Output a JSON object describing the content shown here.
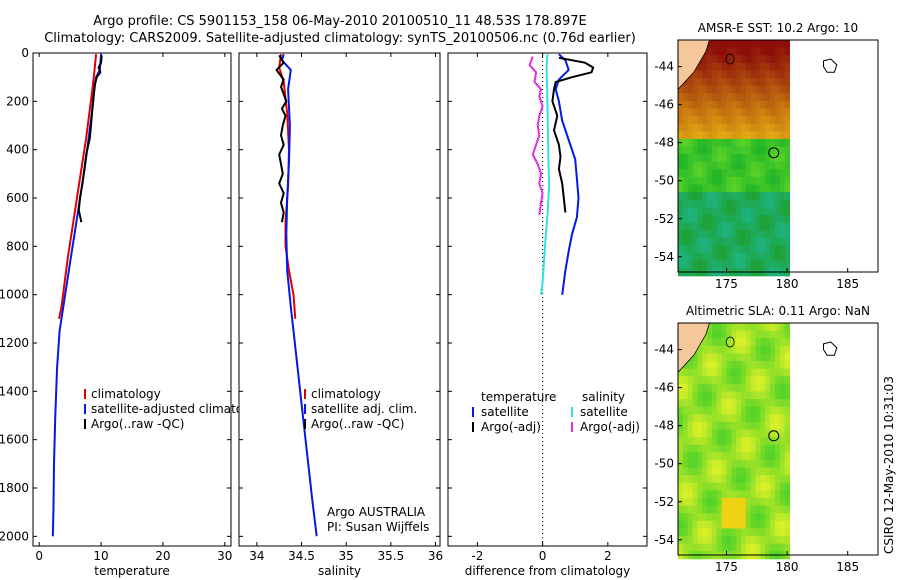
{
  "title_line1": "Argo profile: CS 5901153_158 06-May-2010 20100510_11 48.53S 178.897E",
  "title_line2": "Climatology: CARS2009. Satellite-adjusted climatology: synTS_20100506.nc (0.76d earlier)",
  "footer_text": "CSIRO 12-May-2010 10:31:03",
  "colors": {
    "red": "#e00000",
    "blue": "#0018e8",
    "black": "#000000",
    "cyan": "#30e0e0",
    "magenta": "#e030e0"
  },
  "chart_data": [
    {
      "type": "line",
      "xlabel": "temperature",
      "xlim": [
        -1,
        31
      ],
      "xticks": [
        0,
        10,
        20,
        30
      ],
      "ylim": [
        2040,
        0
      ],
      "yticks": [
        0,
        200,
        400,
        600,
        800,
        1000,
        1200,
        1400,
        1600,
        1800,
        2000
      ],
      "legend": [
        "climatology",
        "satellite-adjusted climatology",
        "Argo(..raw -QC)"
      ],
      "series": [
        {
          "color": "red",
          "points": [
            [
              9.2,
              5
            ],
            [
              8.9,
              80
            ],
            [
              8.6,
              150
            ],
            [
              8.1,
              250
            ],
            [
              7.6,
              350
            ],
            [
              7.0,
              450
            ],
            [
              6.4,
              550
            ],
            [
              5.8,
              650
            ],
            [
              5.2,
              750
            ],
            [
              4.6,
              850
            ],
            [
              4.1,
              950
            ],
            [
              3.6,
              1050
            ],
            [
              3.2,
              1100
            ]
          ]
        },
        {
          "color": "blue",
          "points": [
            [
              10.0,
              5
            ],
            [
              9.9,
              40
            ],
            [
              9.8,
              70
            ],
            [
              9.2,
              100
            ],
            [
              8.9,
              150
            ],
            [
              8.5,
              250
            ],
            [
              8.0,
              350
            ],
            [
              7.5,
              450
            ],
            [
              6.9,
              550
            ],
            [
              6.3,
              650
            ],
            [
              5.7,
              750
            ],
            [
              5.1,
              850
            ],
            [
              4.5,
              950
            ],
            [
              3.9,
              1050
            ],
            [
              3.3,
              1150
            ],
            [
              2.9,
              1300
            ],
            [
              2.6,
              1500
            ],
            [
              2.4,
              1700
            ],
            [
              2.3,
              1900
            ],
            [
              2.2,
              2000
            ]
          ]
        },
        {
          "color": "black",
          "points": [
            [
              10.1,
              10
            ],
            [
              10.0,
              40
            ],
            [
              9.6,
              60
            ],
            [
              9.9,
              80
            ],
            [
              9.3,
              100
            ],
            [
              9.0,
              130
            ],
            [
              8.8,
              180
            ],
            [
              8.5,
              260
            ],
            [
              8.2,
              350
            ],
            [
              7.6,
              420
            ],
            [
              7.3,
              480
            ],
            [
              7.0,
              540
            ],
            [
              6.6,
              600
            ],
            [
              6.4,
              650
            ],
            [
              6.8,
              700
            ]
          ]
        }
      ]
    },
    {
      "type": "line",
      "xlabel": "salinity",
      "xlim": [
        33.8,
        36.05
      ],
      "xticks": [
        34,
        34.5,
        35,
        35.5,
        36
      ],
      "xtick_labels": [
        "34",
        "34.5",
        "35",
        "35.5",
        "36"
      ],
      "ylim": [
        2040,
        0
      ],
      "legend": [
        "climatology",
        "satellite adj. clim.",
        "Argo(..raw -QC)"
      ],
      "annotation": [
        "Argo AUSTRALIA",
        "PI: Susan Wijffels"
      ],
      "series": [
        {
          "color": "red",
          "points": [
            [
              34.27,
              5
            ],
            [
              34.25,
              60
            ],
            [
              34.3,
              120
            ],
            [
              34.34,
              250
            ],
            [
              34.36,
              400
            ],
            [
              34.35,
              550
            ],
            [
              34.32,
              700
            ],
            [
              34.32,
              800
            ],
            [
              34.36,
              900
            ],
            [
              34.41,
              1000
            ],
            [
              34.43,
              1100
            ]
          ]
        },
        {
          "color": "blue",
          "points": [
            [
              34.3,
              5
            ],
            [
              34.28,
              30
            ],
            [
              34.38,
              70
            ],
            [
              34.35,
              150
            ],
            [
              34.37,
              300
            ],
            [
              34.36,
              450
            ],
            [
              34.34,
              600
            ],
            [
              34.33,
              750
            ],
            [
              34.34,
              900
            ],
            [
              34.38,
              1050
            ],
            [
              34.44,
              1250
            ],
            [
              34.5,
              1450
            ],
            [
              34.56,
              1650
            ],
            [
              34.62,
              1850
            ],
            [
              34.67,
              2000
            ]
          ]
        },
        {
          "color": "black",
          "points": [
            [
              34.25,
              10
            ],
            [
              34.3,
              40
            ],
            [
              34.22,
              70
            ],
            [
              34.26,
              90
            ],
            [
              34.3,
              110
            ],
            [
              34.27,
              140
            ],
            [
              34.3,
              170
            ],
            [
              34.33,
              200
            ],
            [
              34.28,
              230
            ],
            [
              34.32,
              260
            ],
            [
              34.29,
              300
            ],
            [
              34.27,
              340
            ],
            [
              34.3,
              380
            ],
            [
              34.25,
              420
            ],
            [
              34.27,
              460
            ],
            [
              34.29,
              500
            ],
            [
              34.25,
              540
            ],
            [
              34.3,
              580
            ],
            [
              34.27,
              620
            ],
            [
              34.3,
              660
            ],
            [
              34.28,
              700
            ]
          ]
        }
      ]
    },
    {
      "type": "line",
      "xlabel": "difference from climatology",
      "xlim": [
        -2.9,
        3.2
      ],
      "xticks": [
        -2,
        0,
        2
      ],
      "ylim": [
        2040,
        0
      ],
      "legend_left_title": "temperature",
      "legend_right_title": "salinity",
      "legend_left": [
        "satellite",
        "Argo(-adj)"
      ],
      "legend_right": [
        "satellite",
        "Argo(-adj)"
      ],
      "series": [
        {
          "color": "blue",
          "points": [
            [
              0.5,
              5
            ],
            [
              0.7,
              30
            ],
            [
              0.8,
              70
            ],
            [
              0.5,
              110
            ],
            [
              0.4,
              150
            ],
            [
              0.5,
              200
            ],
            [
              0.6,
              280
            ],
            [
              0.8,
              360
            ],
            [
              1.0,
              440
            ],
            [
              1.05,
              520
            ],
            [
              1.1,
              600
            ],
            [
              1.05,
              680
            ],
            [
              0.9,
              750
            ],
            [
              0.8,
              820
            ],
            [
              0.7,
              900
            ],
            [
              0.6,
              1000
            ]
          ]
        },
        {
          "color": "black",
          "points": [
            [
              0.5,
              20
            ],
            [
              1.3,
              40
            ],
            [
              1.55,
              60
            ],
            [
              1.5,
              80
            ],
            [
              0.9,
              100
            ],
            [
              0.4,
              120
            ],
            [
              0.35,
              150
            ],
            [
              0.3,
              200
            ],
            [
              0.45,
              260
            ],
            [
              0.35,
              320
            ],
            [
              0.5,
              380
            ],
            [
              0.55,
              430
            ],
            [
              0.5,
              480
            ],
            [
              0.6,
              540
            ],
            [
              0.65,
              600
            ],
            [
              0.7,
              660
            ]
          ]
        },
        {
          "color": "cyan",
          "points": [
            [
              0.15,
              5
            ],
            [
              0.12,
              60
            ],
            [
              0.14,
              150
            ],
            [
              0.16,
              300
            ],
            [
              0.18,
              450
            ],
            [
              0.2,
              550
            ],
            [
              0.16,
              650
            ],
            [
              0.1,
              750
            ],
            [
              0.05,
              850
            ],
            [
              0.0,
              950
            ],
            [
              -0.05,
              1000
            ]
          ]
        },
        {
          "color": "magenta",
          "points": [
            [
              -0.3,
              15
            ],
            [
              -0.4,
              50
            ],
            [
              -0.2,
              80
            ],
            [
              -0.25,
              120
            ],
            [
              -0.05,
              150
            ],
            [
              -0.1,
              180
            ],
            [
              0.0,
              220
            ],
            [
              -0.1,
              260
            ],
            [
              -0.15,
              300
            ],
            [
              -0.1,
              340
            ],
            [
              -0.2,
              380
            ],
            [
              -0.3,
              420
            ],
            [
              -0.15,
              460
            ],
            [
              -0.05,
              500
            ],
            [
              -0.1,
              540
            ],
            [
              0.0,
              580
            ],
            [
              -0.05,
              620
            ],
            [
              -0.1,
              670
            ]
          ]
        }
      ]
    },
    {
      "type": "heatmap",
      "title": "AMSR-E SST: 10.2 Argo: 10",
      "xlim": [
        171,
        187.5
      ],
      "ylim": [
        -54.8,
        -42.6
      ],
      "xticks": [
        175,
        180,
        185
      ],
      "yticks": [
        -44,
        -46,
        -48,
        -50,
        -52,
        -54
      ],
      "ytick_labels": [
        "-44",
        "-46",
        "-48",
        "-50",
        "-52",
        "-54"
      ]
    },
    {
      "type": "heatmap",
      "title": "Altimetric SLA: 0.11 Argo: NaN",
      "xlim": [
        171,
        187.5
      ],
      "ylim": [
        -54.8,
        -42.6
      ],
      "xticks": [
        175,
        180,
        185
      ],
      "yticks": [
        -44,
        -46,
        -48,
        -50,
        -52,
        -54
      ],
      "ytick_labels": [
        "-44",
        "-46",
        "-48",
        "-50",
        "-52",
        "-54"
      ]
    }
  ]
}
